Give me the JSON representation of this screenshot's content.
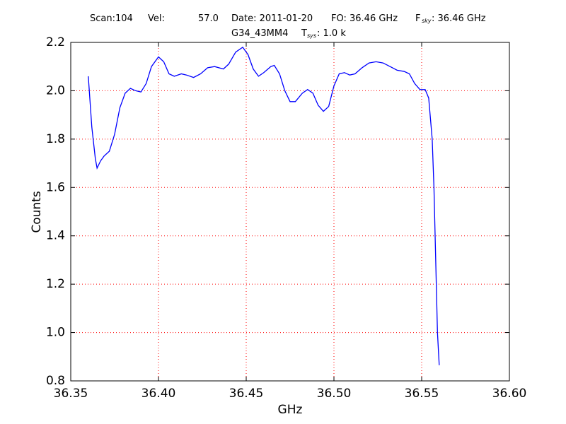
{
  "chart_data": {
    "type": "line",
    "title": {
      "line1": [
        "Scan:104",
        "Vel:",
        "57.0",
        "Date: 2011-01-20",
        "FO: 36.46 GHz",
        "F",
        "sky",
        ": 36.46 GHz"
      ],
      "line2": [
        "G34_43MM4",
        "T",
        "sys",
        ": 1.0 k"
      ]
    },
    "xlabel": "GHz",
    "ylabel": "Counts",
    "xlim": [
      36.35,
      36.6
    ],
    "ylim": [
      0.8,
      2.2
    ],
    "xticks": [
      36.35,
      {
        "value": 36.4,
        "label": "36.40"
      },
      36.45,
      {
        "value": 36.5,
        "label": "36.50"
      },
      36.55,
      {
        "value": 36.6,
        "label": "36.60"
      }
    ],
    "yticks": [
      0.8,
      {
        "value": 1.0,
        "label": "1.0"
      },
      1.2,
      1.4,
      1.6,
      1.8,
      {
        "value": 2.0,
        "label": "2.0"
      },
      2.2
    ],
    "grid": true,
    "grid_color": "#ff0000",
    "series": [
      {
        "color": "#0000ff",
        "x": [
          36.36,
          36.362,
          36.364,
          36.365,
          36.367,
          36.369,
          36.372,
          36.375,
          36.378,
          36.381,
          36.384,
          36.387,
          36.39,
          36.393,
          36.396,
          36.4,
          36.403,
          36.406,
          36.409,
          36.413,
          36.416,
          36.42,
          36.424,
          36.428,
          36.432,
          36.437,
          36.44,
          36.444,
          36.448,
          36.451,
          36.454,
          36.457,
          36.46,
          36.464,
          36.466,
          36.469,
          36.472,
          36.475,
          36.478,
          36.482,
          36.485,
          36.488,
          36.491,
          36.494,
          36.497,
          36.5,
          36.503,
          36.506,
          36.509,
          36.512,
          36.516,
          36.52,
          36.524,
          36.528,
          36.532,
          36.536,
          36.54,
          36.543,
          36.546,
          36.549,
          36.552,
          36.554,
          36.556,
          36.557,
          36.558,
          36.559,
          36.56
        ],
        "values": [
          2.06,
          1.85,
          1.72,
          1.68,
          1.71,
          1.73,
          1.75,
          1.82,
          1.93,
          1.99,
          2.01,
          2.0,
          1.995,
          2.03,
          2.1,
          2.14,
          2.12,
          2.07,
          2.06,
          2.07,
          2.065,
          2.055,
          2.07,
          2.095,
          2.1,
          2.09,
          2.11,
          2.16,
          2.18,
          2.15,
          2.09,
          2.06,
          2.075,
          2.1,
          2.105,
          2.07,
          2.0,
          1.955,
          1.955,
          1.99,
          2.005,
          1.99,
          1.94,
          1.915,
          1.935,
          2.02,
          2.07,
          2.075,
          2.065,
          2.07,
          2.095,
          2.115,
          2.12,
          2.115,
          2.1,
          2.085,
          2.08,
          2.07,
          2.03,
          2.005,
          2.005,
          1.97,
          1.8,
          1.6,
          1.3,
          1.0,
          0.865
        ]
      }
    ]
  }
}
